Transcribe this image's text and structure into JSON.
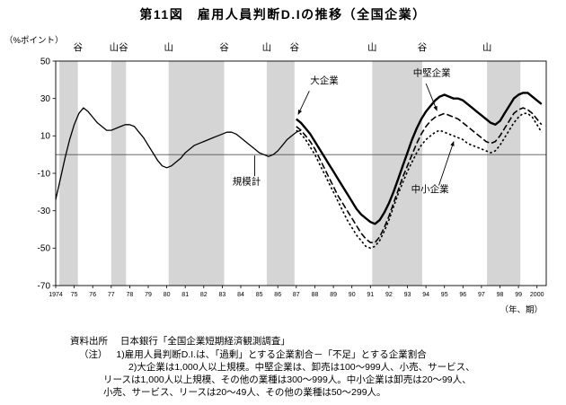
{
  "title": "第11図　雇用人員判断D.Iの推移（全国企業）",
  "y_unit": "（%ポイント）",
  "x_unit": "（年、期）",
  "footer": {
    "source_label": "資料出所",
    "source_text": "日本銀行「全国企業短期経済観測調査」",
    "note_label": "（注）",
    "notes": [
      "1)雇用人員判断D.I.は、「過剰」とする企業割合－「不足」とする企業割合",
      "2)大企業は1,000人以上規模。中堅企業は、卸売は100～999人、小売、サービス、",
      "リースは1,000人以上規模、その他の業種は300～999人。中小企業は卸売は20～99人、",
      "小売、サービス、リースは20～49人、その他の業種は50～299人。"
    ]
  },
  "chart_data": {
    "type": "line",
    "title": "雇用人員判断D.Iの推移（全国企業）",
    "xlabel": "年、期",
    "ylabel": "%ポイント",
    "xlim": [
      1974,
      2000.5
    ],
    "ylim": [
      -70,
      50
    ],
    "yticks": [
      50,
      30,
      10,
      -10,
      -30,
      -50,
      -70
    ],
    "xtick_labels": [
      "1974",
      "75",
      "76",
      "77",
      "78",
      "79",
      "80",
      "81",
      "82",
      "83",
      "84",
      "85",
      "86",
      "87",
      "88",
      "89",
      "90",
      "91",
      "92",
      "93",
      "94",
      "95",
      "96",
      "97",
      "98",
      "99",
      "2000"
    ],
    "grid": false,
    "zero_line": true,
    "legend_position": "inline-annotations",
    "colors": {
      "line": "#000000",
      "band": "#d5d5d5",
      "zero": "#555555",
      "frame": "#000000"
    },
    "recession_bands": [
      [
        1974.2,
        1975.2
      ],
      [
        1977.0,
        1977.8
      ],
      [
        1980.1,
        1983.1
      ],
      [
        1985.4,
        1986.9
      ],
      [
        1991.1,
        1993.8
      ],
      [
        1997.3,
        1999.1
      ]
    ],
    "cycle_labels": [
      {
        "x": 1975.2,
        "label": "谷"
      },
      {
        "x": 1977.4,
        "label": "山谷"
      },
      {
        "x": 1980.1,
        "label": "山"
      },
      {
        "x": 1983.1,
        "label": "谷"
      },
      {
        "x": 1985.4,
        "label": "山"
      },
      {
        "x": 1986.9,
        "label": "谷"
      },
      {
        "x": 1991.1,
        "label": "山"
      },
      {
        "x": 1993.8,
        "label": "谷"
      },
      {
        "x": 1997.3,
        "label": "山"
      }
    ],
    "series": [
      {
        "key": "kibo-kei",
        "name": "規模計",
        "style": "solid",
        "width": 1.3,
        "start": 1974.0,
        "step": 0.25,
        "values": [
          -24,
          -13,
          -2,
          8,
          16,
          22,
          25,
          23,
          20,
          17,
          15,
          13,
          13,
          14,
          15,
          16,
          16,
          15,
          12,
          9,
          5,
          1,
          -3,
          -6,
          -7,
          -6,
          -4,
          -2,
          1,
          3,
          5,
          6,
          7,
          8,
          9,
          10,
          11,
          12,
          12,
          11,
          9,
          7,
          5,
          3,
          1,
          0,
          -1,
          0,
          2,
          5,
          8,
          10,
          12,
          13
        ]
      },
      {
        "key": "dai-kigyo",
        "name": "大企業",
        "style": "solid",
        "width": 2.4,
        "start": 1987.0,
        "step": 0.25,
        "values": [
          19,
          17,
          14,
          11,
          7,
          3,
          -1,
          -5,
          -9,
          -13,
          -17,
          -21,
          -25,
          -29,
          -32,
          -34,
          -36,
          -37,
          -35,
          -31,
          -26,
          -20,
          -13,
          -6,
          1,
          8,
          14,
          19,
          23,
          26,
          29,
          31,
          32,
          31,
          30,
          30,
          29,
          27,
          25,
          23,
          21,
          19,
          17,
          16,
          18,
          22,
          26,
          30,
          32,
          33,
          33,
          31,
          29,
          27
        ]
      },
      {
        "key": "chuken-kigyo",
        "name": "中堅企業",
        "style": "dashed",
        "width": 1.6,
        "start": 1987.0,
        "step": 0.25,
        "values": [
          15,
          13,
          10,
          7,
          3,
          -2,
          -7,
          -12,
          -17,
          -22,
          -26,
          -30,
          -34,
          -38,
          -42,
          -45,
          -47,
          -47,
          -44,
          -39,
          -33,
          -26,
          -19,
          -12,
          -6,
          0,
          6,
          11,
          15,
          18,
          20,
          21,
          22,
          21,
          20,
          19,
          17,
          15,
          13,
          11,
          9,
          7,
          6,
          7,
          10,
          14,
          18,
          22,
          24,
          25,
          24,
          22,
          19,
          16
        ]
      },
      {
        "key": "chusho-kigyo",
        "name": "中小企業",
        "style": "dashdot",
        "width": 1.6,
        "start": 1987.0,
        "step": 0.25,
        "values": [
          13,
          11,
          8,
          4,
          0,
          -5,
          -10,
          -15,
          -20,
          -25,
          -30,
          -35,
          -39,
          -43,
          -46,
          -49,
          -50,
          -49,
          -46,
          -41,
          -35,
          -28,
          -21,
          -15,
          -9,
          -4,
          1,
          5,
          8,
          10,
          12,
          13,
          12,
          11,
          10,
          9,
          8,
          6,
          5,
          4,
          3,
          2,
          1,
          2,
          5,
          9,
          13,
          17,
          20,
          22,
          22,
          20,
          16,
          12
        ]
      }
    ],
    "annotations": [
      {
        "text": "規模計",
        "anchor": "start",
        "label": [
          1983.55,
          -16
        ],
        "from": [
          1984.75,
          -11.5
        ],
        "to": [
          1984.75,
          -0.5
        ],
        "head": false
      },
      {
        "text": "大企業",
        "anchor": "start",
        "label": [
          1987.75,
          38
        ],
        "from": [
          1987.7,
          34
        ],
        "to": [
          1987.1,
          21.5
        ],
        "head": true
      },
      {
        "text": "中堅企業",
        "anchor": "start",
        "label": [
          1993.3,
          42
        ],
        "from": [
          1994.0,
          38
        ],
        "to": [
          1994.6,
          23.5
        ],
        "head": true
      },
      {
        "text": "中小企業",
        "anchor": "start",
        "label": [
          1993.2,
          -20
        ],
        "from": [
          1994.7,
          -16.5
        ],
        "to": [
          1995.5,
          7
        ],
        "head": true
      }
    ]
  }
}
